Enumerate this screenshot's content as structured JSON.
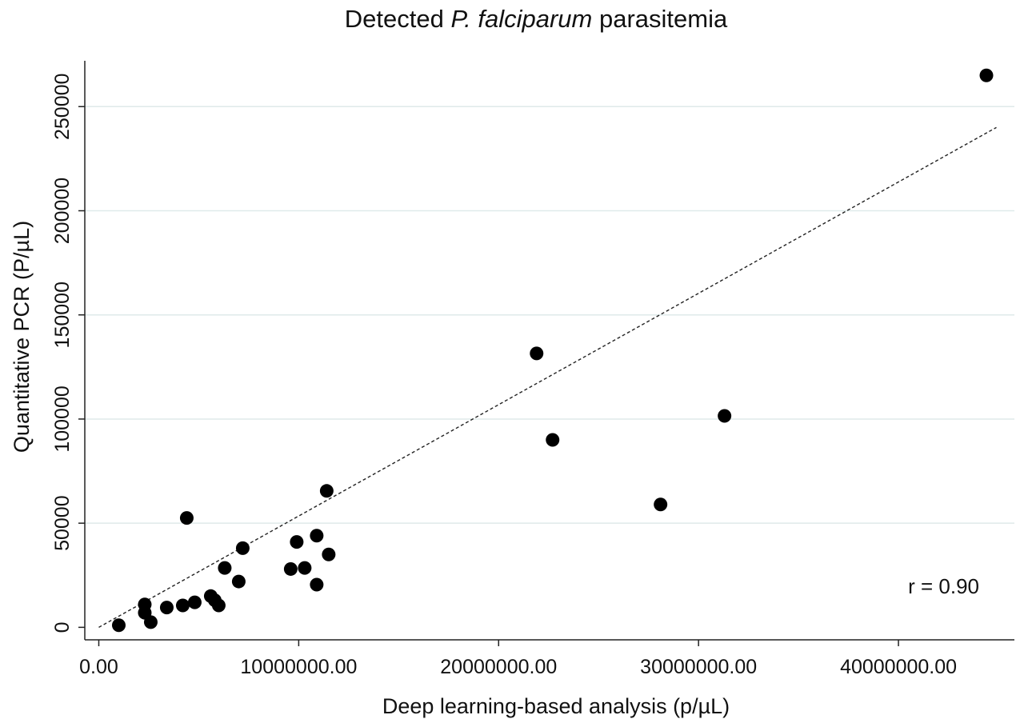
{
  "chart_data": {
    "type": "scatter",
    "title": "Detected P. falciparum parasitemia",
    "title_parts": {
      "prefix": "Detected ",
      "italic": "P. falciparum",
      "suffix": " parasitemia"
    },
    "xlabel": "Deep learning-based analysis (p/µL)",
    "ylabel": "Quantitative PCR (P/µL)",
    "xlim": [
      -700000,
      45800000
    ],
    "ylim": [
      -6000,
      272000
    ],
    "x_ticks": [
      0,
      10000000,
      20000000,
      30000000,
      40000000
    ],
    "x_tick_labels": [
      "0.00",
      "10000000.00",
      "20000000.00",
      "30000000.00",
      "40000000.00"
    ],
    "y_ticks": [
      0,
      50000,
      100000,
      150000,
      200000,
      250000
    ],
    "y_tick_labels": [
      "0",
      "50000",
      "100000",
      "150000",
      "200000",
      "250000"
    ],
    "grid": "horizontal",
    "legend": "none",
    "points": [
      {
        "x": 1000000,
        "y": 1000
      },
      {
        "x": 2300000,
        "y": 11000
      },
      {
        "x": 2300000,
        "y": 7000
      },
      {
        "x": 2600000,
        "y": 2500
      },
      {
        "x": 3400000,
        "y": 9500
      },
      {
        "x": 4200000,
        "y": 10500
      },
      {
        "x": 4400000,
        "y": 52500
      },
      {
        "x": 4800000,
        "y": 12000
      },
      {
        "x": 5600000,
        "y": 15000
      },
      {
        "x": 5800000,
        "y": 13000
      },
      {
        "x": 6000000,
        "y": 10500
      },
      {
        "x": 6300000,
        "y": 28500
      },
      {
        "x": 7000000,
        "y": 22000
      },
      {
        "x": 7200000,
        "y": 38000
      },
      {
        "x": 9600000,
        "y": 28000
      },
      {
        "x": 9900000,
        "y": 41000
      },
      {
        "x": 10300000,
        "y": 28500
      },
      {
        "x": 10900000,
        "y": 44000
      },
      {
        "x": 10900000,
        "y": 20500
      },
      {
        "x": 11400000,
        "y": 65500
      },
      {
        "x": 11500000,
        "y": 35000
      },
      {
        "x": 21900000,
        "y": 131500
      },
      {
        "x": 22700000,
        "y": 90000
      },
      {
        "x": 28100000,
        "y": 59000
      },
      {
        "x": 31300000,
        "y": 101500
      },
      {
        "x": 44400000,
        "y": 265000
      }
    ],
    "fit_line": {
      "style": "dashed",
      "x": [
        0,
        44900000
      ],
      "y": [
        0,
        240000
      ]
    },
    "annotation": "r = 0.90",
    "colors": {
      "points": "#000000",
      "grid": "#dfeaea",
      "axis": "#222222",
      "fit_line": "#222222"
    }
  }
}
